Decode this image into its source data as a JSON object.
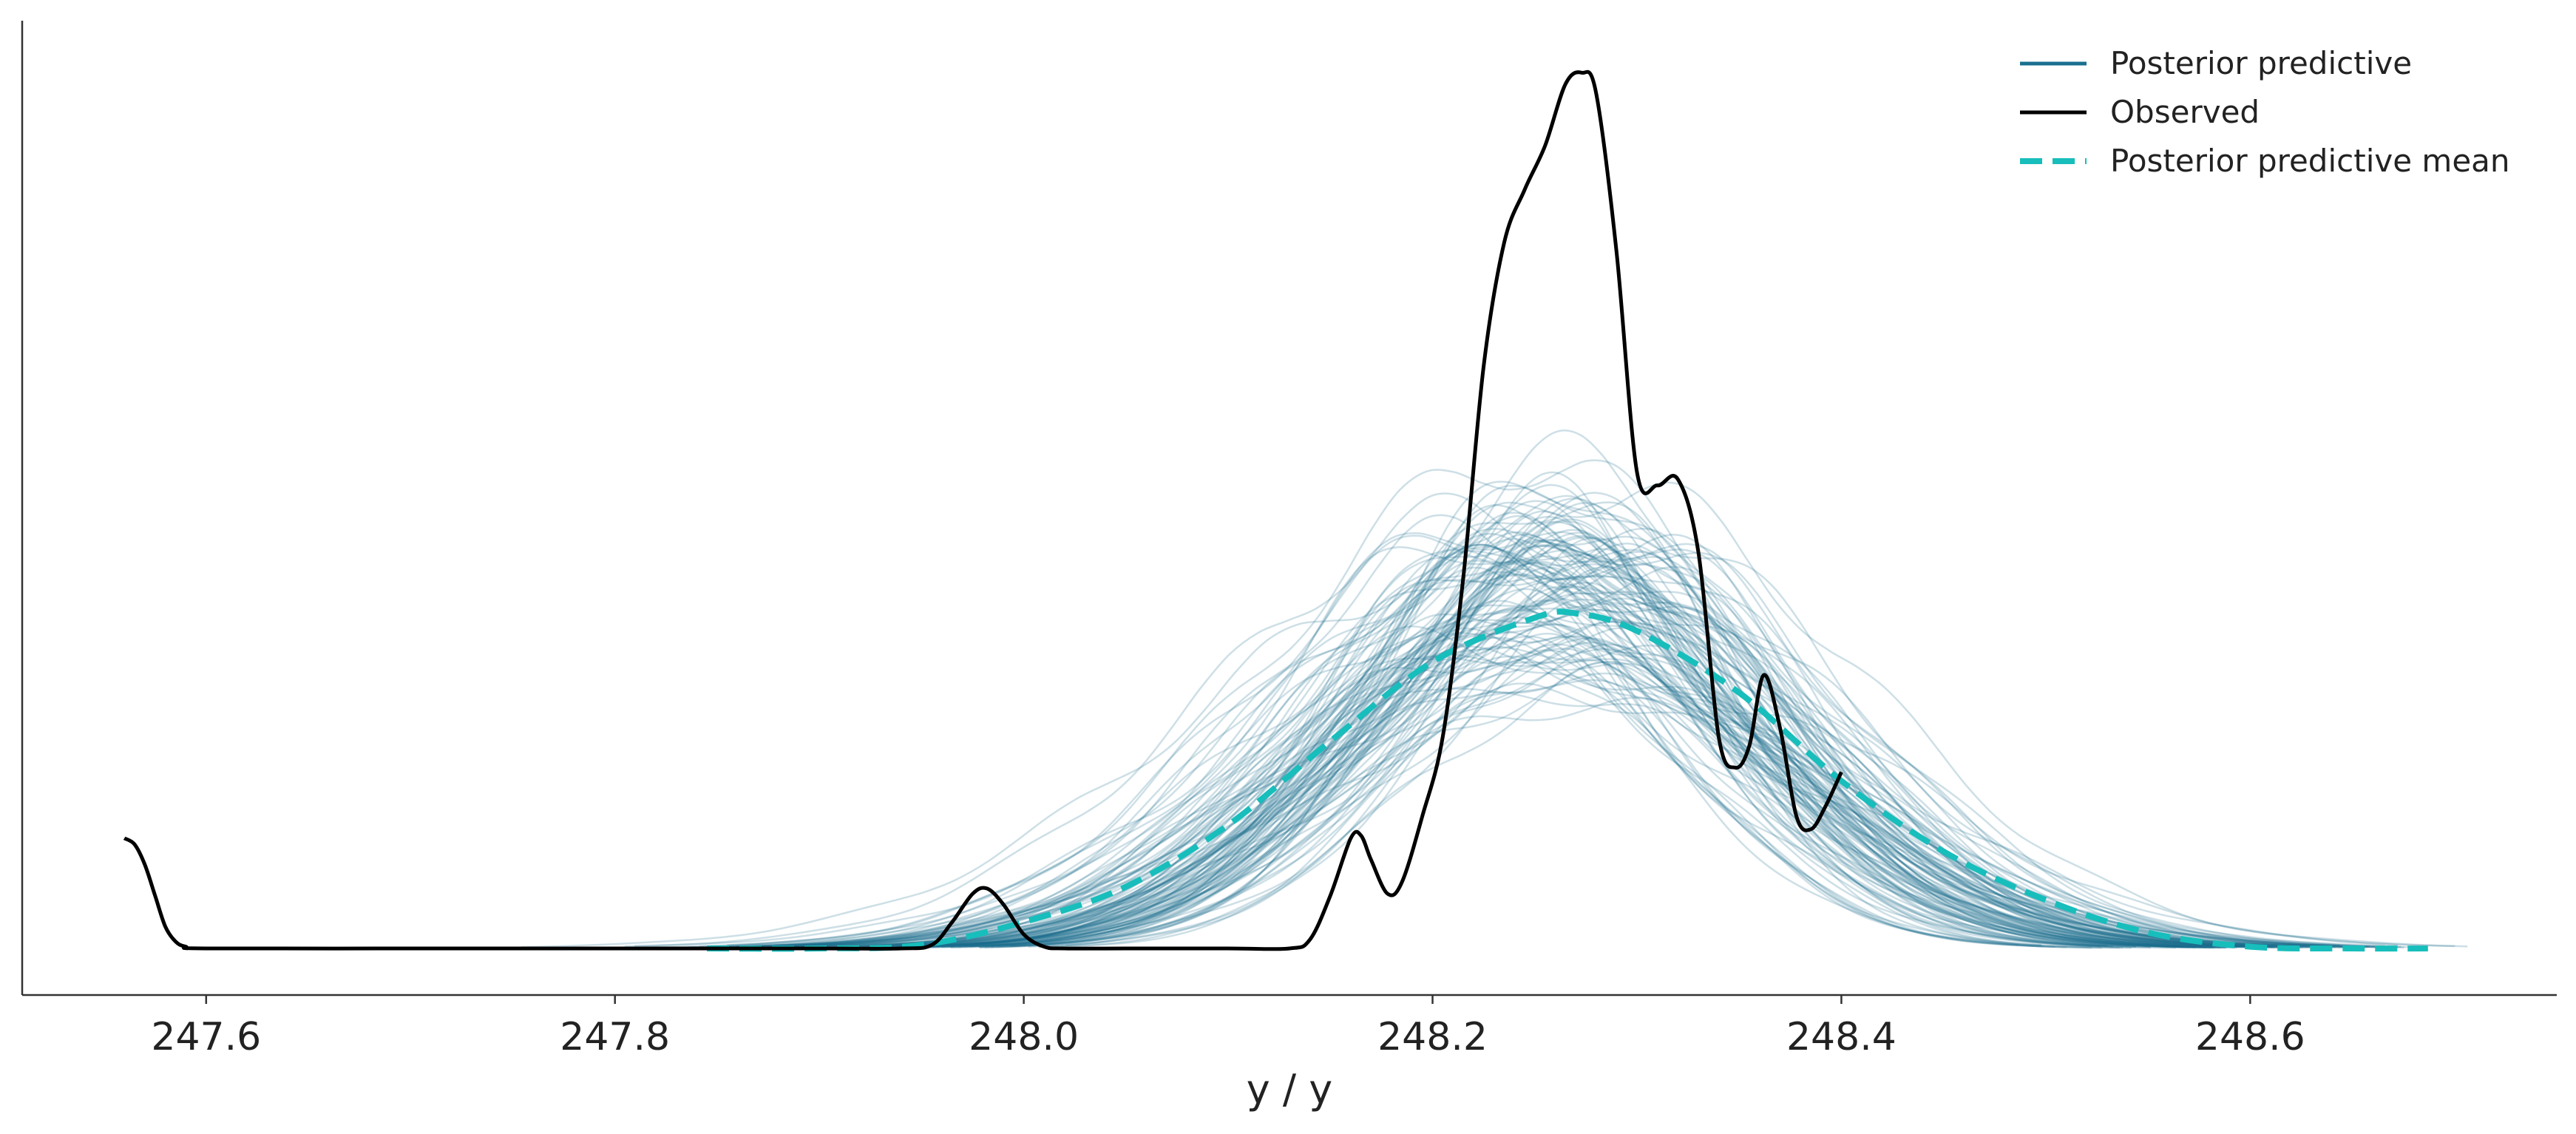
{
  "chart_data": {
    "type": "line",
    "title": "",
    "xlabel": "y / y",
    "ylabel": "",
    "xlim": [
      247.51,
      248.75
    ],
    "ylim": [
      0,
      1.0
    ],
    "x_ticks": [
      "247.6",
      "247.8",
      "248.0",
      "248.2",
      "248.4",
      "248.6"
    ],
    "y_ticks_visible": false,
    "grid": false,
    "legend": "top-right",
    "colors": {
      "posterior_predictive": "#1a6f8f",
      "observed": "#000000",
      "posterior_predictive_mean": "#17bebb"
    },
    "series": [
      {
        "name": "Posterior predictive",
        "style": "thin translucent lines (many draws)",
        "draw_count": 120,
        "typical_center_x": 248.26,
        "typical_sd": 0.105,
        "typical_peak": 0.42
      },
      {
        "name": "Observed",
        "style": "solid line",
        "points": [
          [
            247.56,
            0.125
          ],
          [
            247.565,
            0.118
          ],
          [
            247.57,
            0.095
          ],
          [
            247.575,
            0.06
          ],
          [
            247.58,
            0.025
          ],
          [
            247.585,
            0.008
          ],
          [
            247.59,
            0.002
          ],
          [
            247.6,
            0.0
          ],
          [
            247.7,
            0.0
          ],
          [
            247.8,
            0.0
          ],
          [
            247.9,
            0.0
          ],
          [
            247.94,
            0.0
          ],
          [
            247.955,
            0.004
          ],
          [
            247.965,
            0.03
          ],
          [
            247.975,
            0.062
          ],
          [
            247.982,
            0.068
          ],
          [
            247.99,
            0.05
          ],
          [
            248.0,
            0.016
          ],
          [
            248.01,
            0.002
          ],
          [
            248.02,
            0.0
          ],
          [
            248.05,
            0.0
          ],
          [
            248.1,
            0.0
          ],
          [
            248.13,
            0.0
          ],
          [
            248.14,
            0.01
          ],
          [
            248.15,
            0.06
          ],
          [
            248.16,
            0.125
          ],
          [
            248.165,
            0.128
          ],
          [
            248.17,
            0.1
          ],
          [
            248.178,
            0.062
          ],
          [
            248.185,
            0.075
          ],
          [
            248.195,
            0.15
          ],
          [
            248.205,
            0.24
          ],
          [
            248.215,
            0.42
          ],
          [
            248.225,
            0.66
          ],
          [
            248.235,
            0.8
          ],
          [
            248.245,
            0.86
          ],
          [
            248.255,
            0.91
          ],
          [
            248.265,
            0.98
          ],
          [
            248.273,
            0.993
          ],
          [
            248.28,
            0.97
          ],
          [
            248.29,
            0.79
          ],
          [
            248.3,
            0.54
          ],
          [
            248.31,
            0.525
          ],
          [
            248.32,
            0.532
          ],
          [
            248.33,
            0.45
          ],
          [
            248.34,
            0.24
          ],
          [
            248.348,
            0.205
          ],
          [
            248.355,
            0.23
          ],
          [
            248.362,
            0.31
          ],
          [
            248.37,
            0.25
          ],
          [
            248.378,
            0.15
          ],
          [
            248.385,
            0.135
          ],
          [
            248.392,
            0.16
          ],
          [
            248.4,
            0.2
          ]
        ]
      },
      {
        "name": "Posterior predictive mean",
        "style": "dashed line",
        "points": [
          [
            247.845,
            0.0
          ],
          [
            247.9,
            0.0
          ],
          [
            247.95,
            0.004
          ],
          [
            248.0,
            0.03
          ],
          [
            248.05,
            0.07
          ],
          [
            248.1,
            0.14
          ],
          [
            248.15,
            0.235
          ],
          [
            248.2,
            0.325
          ],
          [
            248.25,
            0.375
          ],
          [
            248.27,
            0.38
          ],
          [
            248.3,
            0.36
          ],
          [
            248.35,
            0.29
          ],
          [
            248.4,
            0.19
          ],
          [
            248.45,
            0.11
          ],
          [
            248.5,
            0.055
          ],
          [
            248.55,
            0.018
          ],
          [
            248.6,
            0.002
          ],
          [
            248.65,
            0.0
          ],
          [
            248.687,
            0.0
          ]
        ]
      }
    ]
  }
}
